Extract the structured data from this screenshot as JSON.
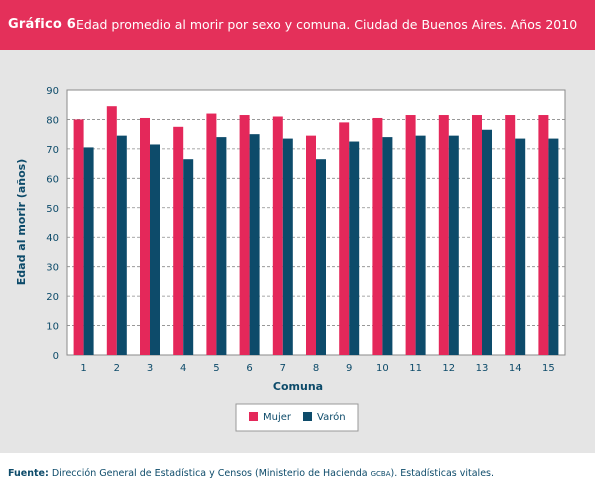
{
  "header": {
    "label": "Gráfico 6",
    "title": "Edad promedio al morir por sexo y comuna. Ciudad de Buenos Aires. Años 2010"
  },
  "footer": {
    "source_label": "Fuente:",
    "source_text": "Dirección General de Estadística y Censos (Ministerio de Hacienda",
    "source_small": "GCBA",
    "source_tail": "). Estadísticas vitales."
  },
  "colors": {
    "header_bg": "#e4305a",
    "mujer": "#e4285a",
    "varon": "#0d4b6a",
    "axis_text": "#0d4b6a"
  },
  "chart_data": {
    "type": "bar",
    "title": "",
    "xlabel": "Comuna",
    "ylabel": "Edad al morir (años)",
    "ylim": [
      0,
      90
    ],
    "yticks": [
      0,
      10,
      20,
      30,
      40,
      50,
      60,
      70,
      80,
      90
    ],
    "grid": true,
    "legend_position": "bottom",
    "categories": [
      "1",
      "2",
      "3",
      "4",
      "5",
      "6",
      "7",
      "8",
      "9",
      "10",
      "11",
      "12",
      "13",
      "14",
      "15"
    ],
    "series": [
      {
        "name": "Mujer",
        "values": [
          80,
          84.5,
          80.5,
          77.5,
          82,
          81.5,
          81,
          74.5,
          79,
          80.5,
          81.5,
          81.5,
          81.5,
          81.5,
          81.5
        ]
      },
      {
        "name": "Varón",
        "values": [
          70.5,
          74.5,
          71.5,
          66.5,
          74,
          75,
          73.5,
          66.5,
          72.5,
          74,
          74.5,
          74.5,
          76.5,
          73.5,
          73.5
        ]
      }
    ]
  }
}
